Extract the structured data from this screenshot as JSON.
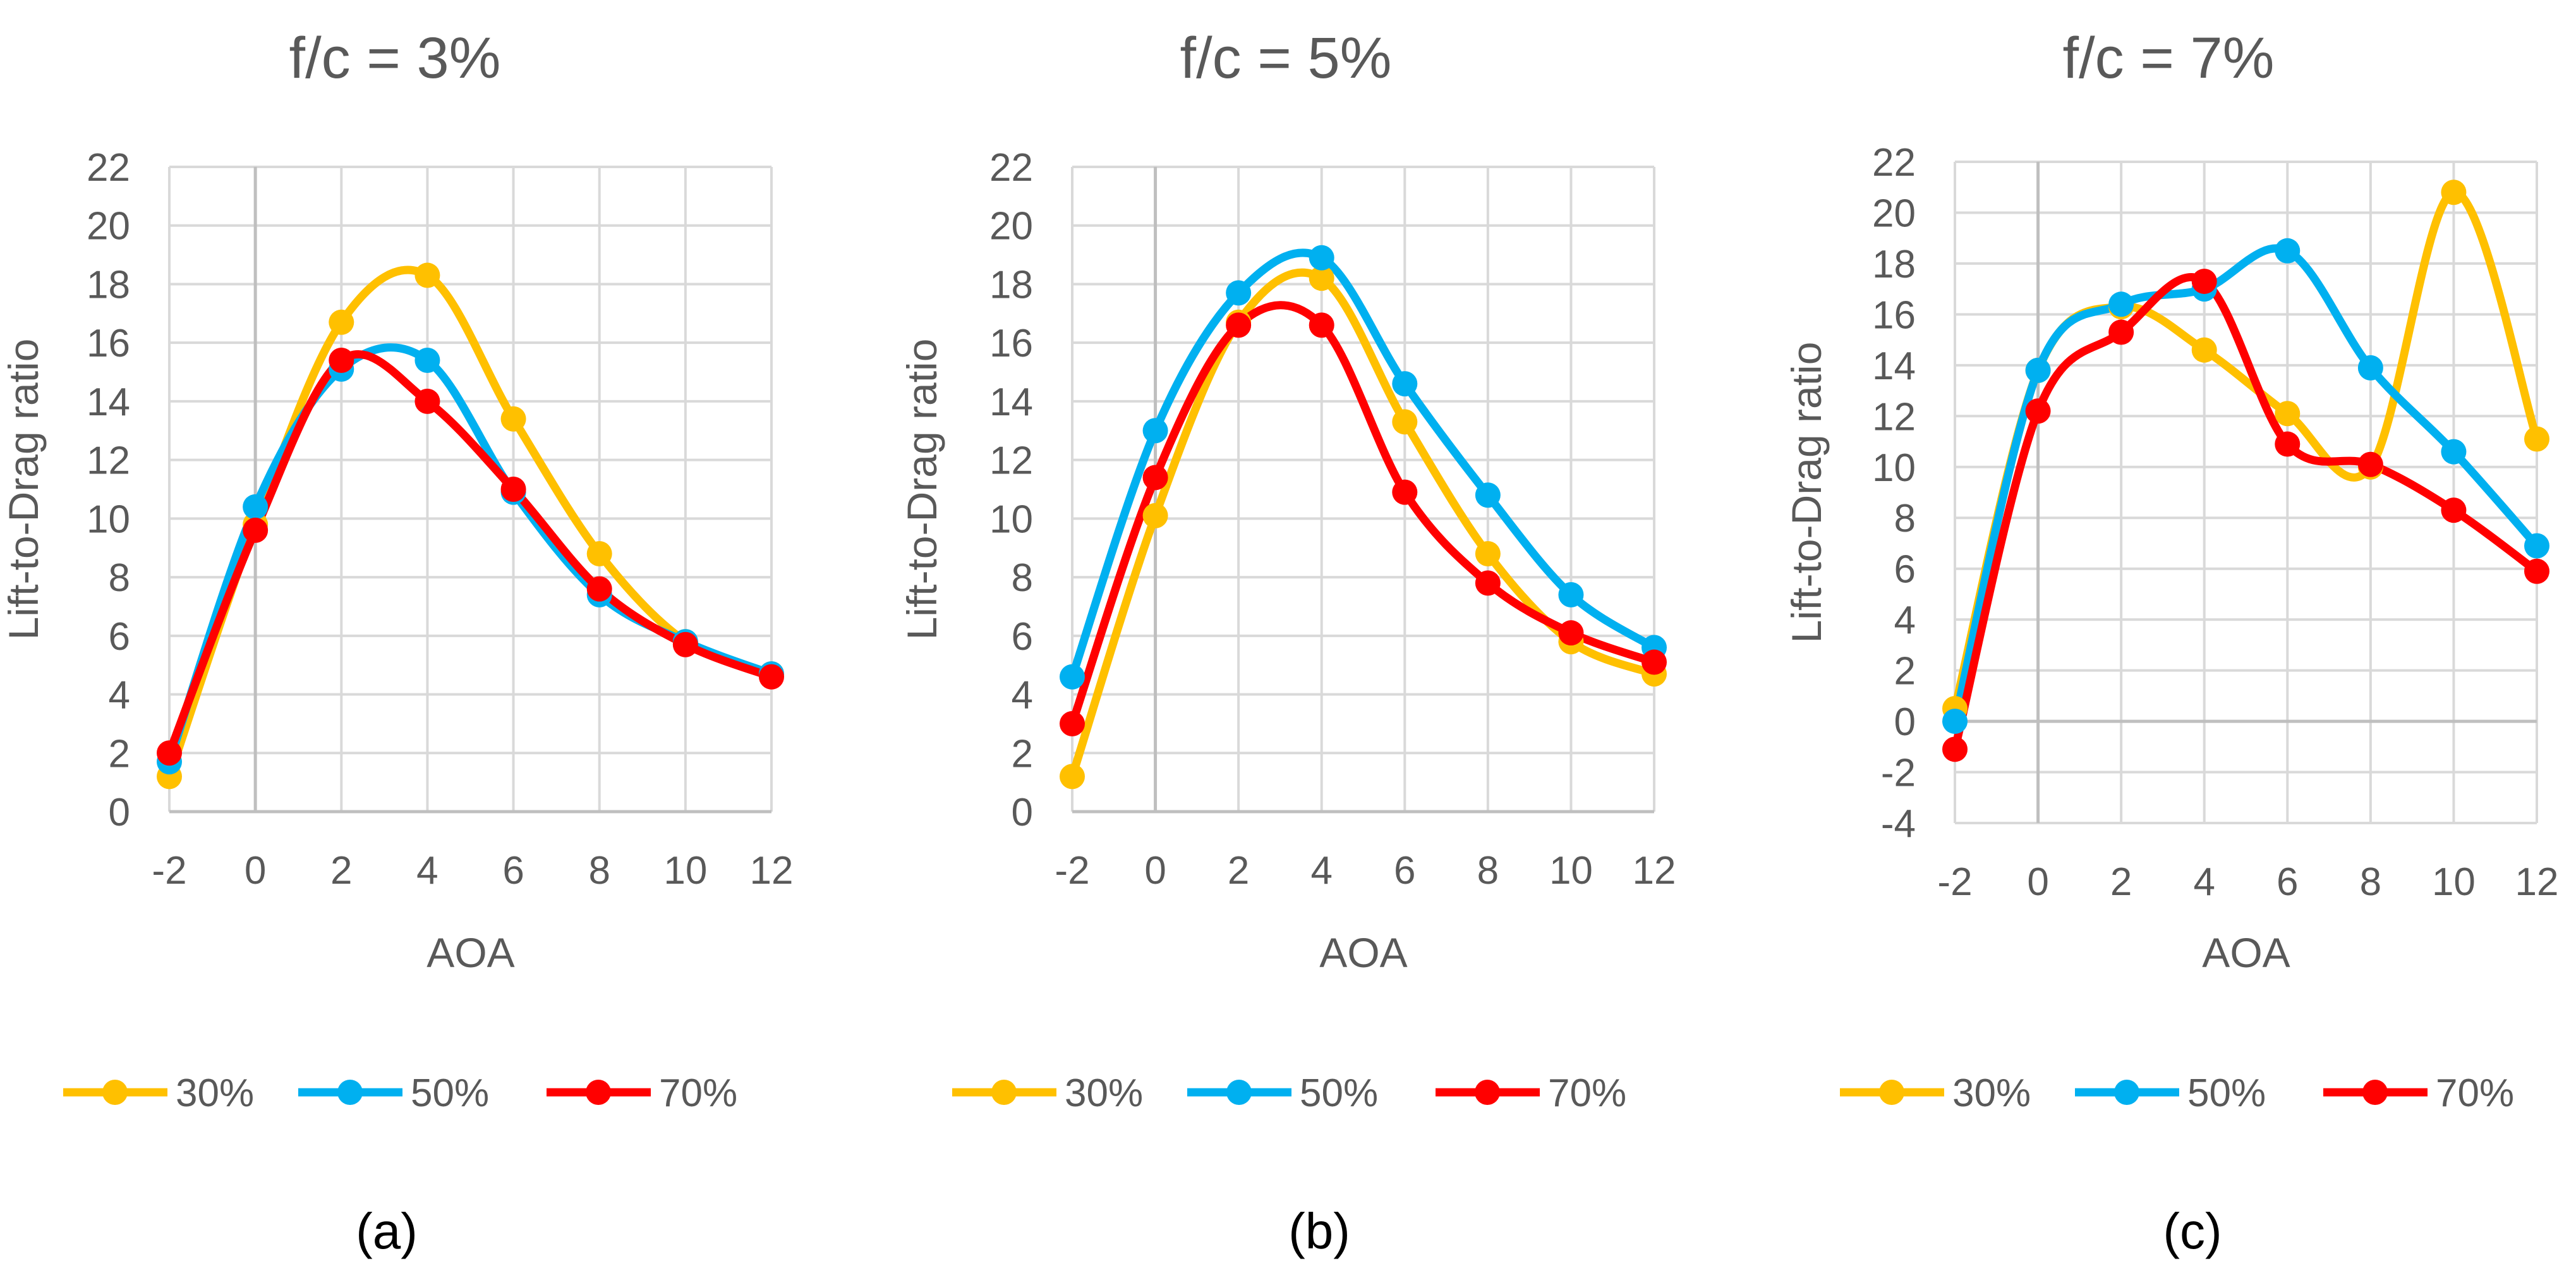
{
  "chart_data": [
    {
      "type": "line",
      "title": "f/c = 3%",
      "caption": "(a)",
      "xlabel": "AOA",
      "ylabel": "Lift-to-Drag ratio",
      "x": [
        -2,
        0,
        2,
        4,
        6,
        8,
        10,
        12
      ],
      "xlim": [
        -2,
        12
      ],
      "ylim": [
        0,
        22
      ],
      "yticks": [
        0,
        2,
        4,
        6,
        8,
        10,
        12,
        14,
        16,
        18,
        20,
        22
      ],
      "grid": true,
      "legend": "bottom",
      "series": [
        {
          "name": "30%",
          "color": "#FFC000",
          "values": [
            1.2,
            9.8,
            16.7,
            18.3,
            13.4,
            8.8,
            5.8,
            4.7
          ]
        },
        {
          "name": "50%",
          "color": "#00B0F0",
          "values": [
            1.7,
            10.4,
            15.1,
            15.4,
            10.9,
            7.4,
            5.8,
            4.7
          ]
        },
        {
          "name": "70%",
          "color": "#FF0000",
          "values": [
            2.0,
            9.6,
            15.4,
            14.0,
            11.0,
            7.6,
            5.7,
            4.6
          ]
        }
      ]
    },
    {
      "type": "line",
      "title": "f/c = 5%",
      "caption": "(b)",
      "xlabel": "AOA",
      "ylabel": "Lift-to-Drag ratio",
      "x": [
        -2,
        0,
        2,
        4,
        6,
        8,
        10,
        12
      ],
      "xlim": [
        -2,
        12
      ],
      "ylim": [
        0,
        22
      ],
      "yticks": [
        0,
        2,
        4,
        6,
        8,
        10,
        12,
        14,
        16,
        18,
        20,
        22
      ],
      "grid": true,
      "legend": "bottom",
      "series": [
        {
          "name": "30%",
          "color": "#FFC000",
          "values": [
            1.2,
            10.1,
            16.7,
            18.2,
            13.3,
            8.8,
            5.8,
            4.7
          ]
        },
        {
          "name": "50%",
          "color": "#00B0F0",
          "values": [
            4.6,
            13.0,
            17.7,
            18.9,
            14.6,
            10.8,
            7.4,
            5.6
          ]
        },
        {
          "name": "70%",
          "color": "#FF0000",
          "values": [
            3.0,
            11.4,
            16.6,
            16.6,
            10.9,
            7.8,
            6.1,
            5.1
          ]
        }
      ]
    },
    {
      "type": "line",
      "title": "f/c = 7%",
      "caption": "(c)",
      "xlabel": "AOA",
      "ylabel": "Lift-to-Drag ratio",
      "x": [
        -2,
        0,
        2,
        4,
        6,
        8,
        10,
        12
      ],
      "xlim": [
        -2,
        12
      ],
      "ylim": [
        -4,
        22
      ],
      "yticks": [
        -4,
        -2,
        0,
        2,
        4,
        6,
        8,
        10,
        12,
        14,
        16,
        18,
        20,
        22
      ],
      "grid": true,
      "legend": "bottom",
      "series": [
        {
          "name": "30%",
          "color": "#FFC000",
          "values": [
            0.5,
            13.8,
            16.3,
            14.6,
            12.1,
            10.0,
            20.8,
            11.1
          ]
        },
        {
          "name": "50%",
          "color": "#00B0F0",
          "values": [
            0.0,
            13.8,
            16.4,
            17.0,
            18.5,
            13.9,
            10.6,
            6.9
          ]
        },
        {
          "name": "70%",
          "color": "#FF0000",
          "values": [
            -1.1,
            12.2,
            15.3,
            17.3,
            10.9,
            10.1,
            8.3,
            5.9
          ]
        }
      ]
    }
  ]
}
